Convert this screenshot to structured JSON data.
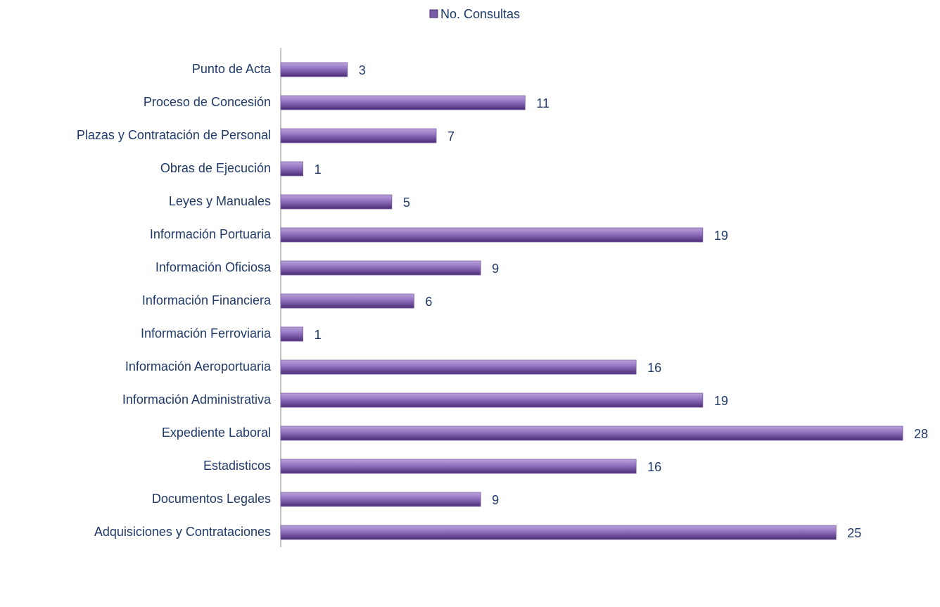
{
  "chart_data": {
    "type": "bar",
    "orientation": "horizontal",
    "categories": [
      "Punto de Acta",
      "Proceso de Concesión",
      "Plazas y Contratación de Personal",
      "Obras de Ejecución",
      "Leyes y Manuales",
      "Información Portuaria",
      "Información Oficiosa",
      "Información Financiera",
      "Información Ferroviaria",
      "Información Aeroportuaria",
      "Información Administrativa",
      "Expediente Laboral",
      "Estadisticos",
      "Documentos Legales",
      "Adquisiciones y Contrataciones"
    ],
    "series": [
      {
        "name": "No. Consultas",
        "color": "#7b5ba8",
        "values": [
          3,
          11,
          7,
          1,
          5,
          19,
          9,
          6,
          1,
          16,
          19,
          28,
          16,
          9,
          25
        ]
      }
    ],
    "xlim": [
      0,
      28
    ],
    "legend": "top"
  }
}
